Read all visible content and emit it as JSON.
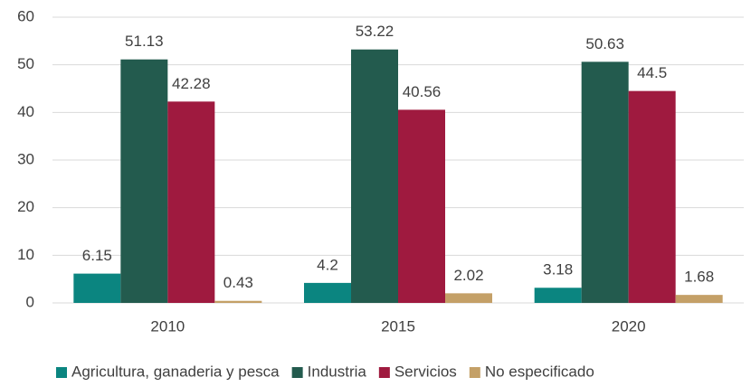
{
  "chart_data": {
    "type": "bar",
    "categories": [
      "2010",
      "2015",
      "2020"
    ],
    "series": [
      {
        "name": "Agricultura, ganaderia y pesca",
        "color": "#0b8580",
        "values": [
          6.15,
          4.2,
          3.18
        ]
      },
      {
        "name": "Industria",
        "color": "#235b4e",
        "values": [
          51.13,
          53.22,
          50.63
        ]
      },
      {
        "name": "Servicios",
        "color": "#9f1a3f",
        "values": [
          42.28,
          40.56,
          44.5
        ]
      },
      {
        "name": "No especificado",
        "color": "#c4a067",
        "values": [
          0.43,
          2.02,
          1.68
        ]
      }
    ],
    "ylim": [
      0,
      60
    ],
    "yticks": [
      0,
      10,
      20,
      30,
      40,
      50,
      60
    ],
    "grid": true,
    "legend": "bottom"
  }
}
